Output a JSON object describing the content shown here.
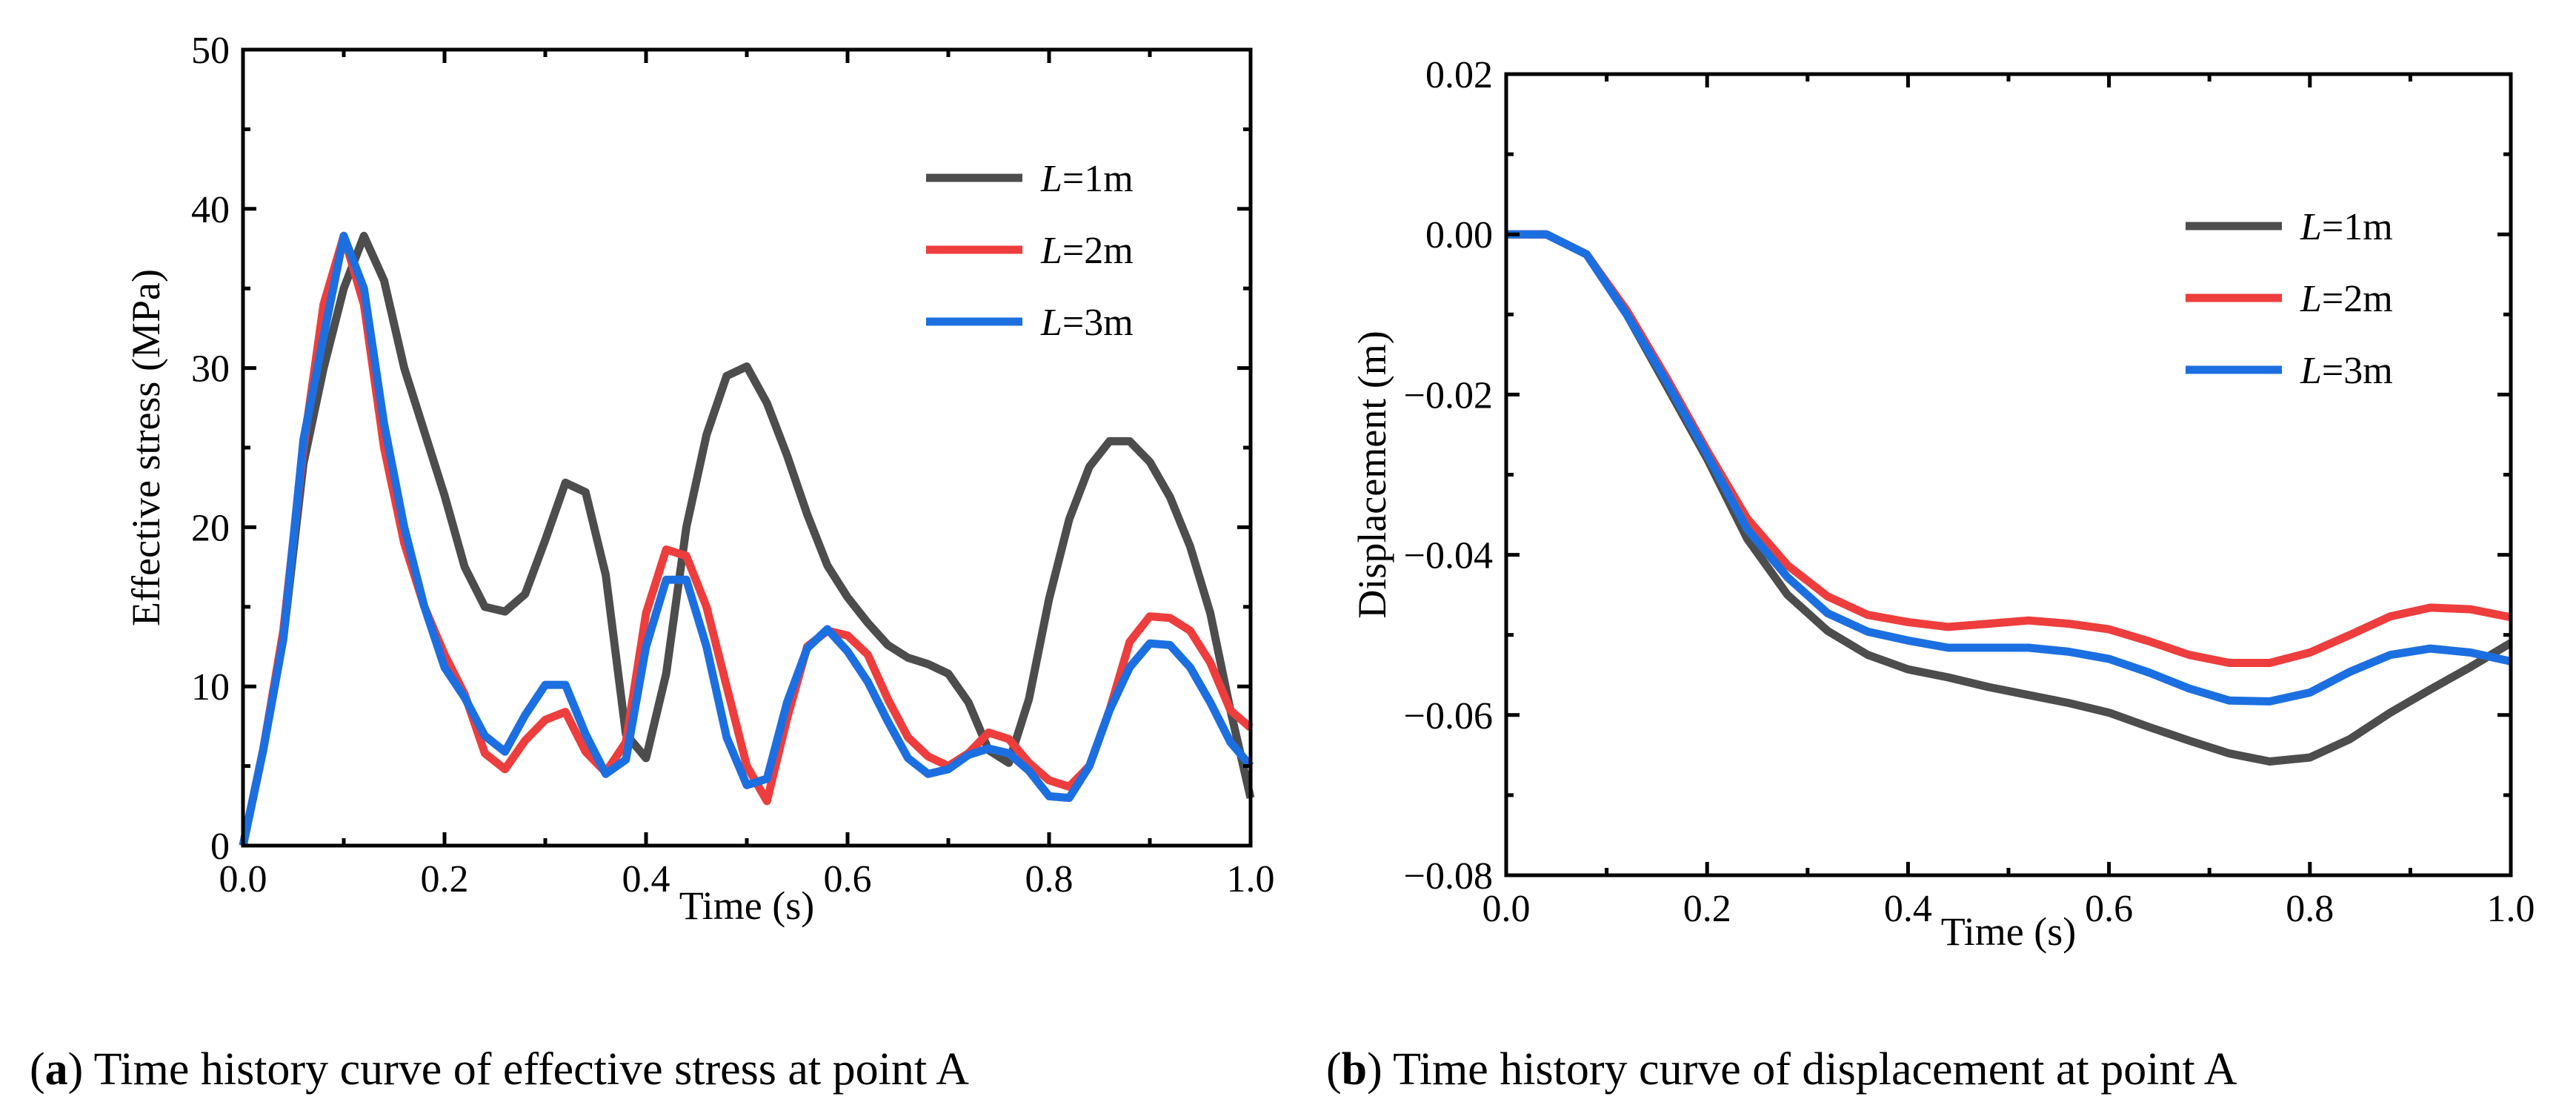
{
  "chart_data": [
    {
      "type": "line",
      "caption_label": "a",
      "caption_text": "Time history curve of effective stress at point A",
      "xlabel": "Time (s)",
      "ylabel": "Effective stress (MPa)",
      "xlim": [
        0,
        1.0
      ],
      "ylim": [
        0,
        50
      ],
      "xticks": [
        "0.0",
        "0.2",
        "0.4",
        "0.6",
        "0.8",
        "1.0"
      ],
      "xtick_values": [
        0,
        0.2,
        0.4,
        0.6,
        0.8,
        1.0
      ],
      "yticks": [
        "0",
        "10",
        "20",
        "30",
        "40",
        "50"
      ],
      "ytick_values": [
        0,
        10,
        20,
        30,
        40,
        50
      ],
      "legend_position": "top-right",
      "x": [
        0,
        0.02,
        0.04,
        0.06,
        0.08,
        0.1,
        0.12,
        0.14,
        0.16,
        0.18,
        0.2,
        0.22,
        0.24,
        0.26,
        0.28,
        0.3,
        0.32,
        0.34,
        0.36,
        0.38,
        0.4,
        0.42,
        0.44,
        0.46,
        0.48,
        0.5,
        0.52,
        0.54,
        0.56,
        0.58,
        0.6,
        0.62,
        0.64,
        0.66,
        0.68,
        0.7,
        0.72,
        0.74,
        0.76,
        0.78,
        0.8,
        0.82,
        0.84,
        0.86,
        0.88,
        0.9,
        0.92,
        0.94,
        0.96,
        0.98,
        1.0
      ],
      "series": [
        {
          "name_italic": "L",
          "name_rest": "=1m",
          "color": "#4d4d4d",
          "values": [
            0,
            6,
            13,
            24,
            30,
            35,
            38.3,
            35.5,
            30,
            26,
            22,
            17.5,
            15,
            14.7,
            15.8,
            19.2,
            22.8,
            22.2,
            17,
            7,
            5.5,
            10.8,
            20,
            25.8,
            29.5,
            30.1,
            27.8,
            24.5,
            20.8,
            17.6,
            15.6,
            14,
            12.6,
            11.8,
            11.4,
            10.8,
            9,
            6,
            5.2,
            9.2,
            15.5,
            20.5,
            23.8,
            25.4,
            25.4,
            24.1,
            21.9,
            18.8,
            14.6,
            8.5,
            3
          ]
        },
        {
          "name_italic": "L",
          "name_rest": "=2m",
          "color": "#ee3d3d",
          "values": [
            0,
            6,
            13.5,
            25,
            34,
            38.3,
            34,
            25,
            19,
            15,
            12,
            9.5,
            5.8,
            4.8,
            6.6,
            7.9,
            8.4,
            5.9,
            4.6,
            6.5,
            14.6,
            18.6,
            18.2,
            15,
            10,
            5,
            2.8,
            8,
            12.5,
            13.5,
            13.2,
            12,
            9.2,
            6.8,
            5.6,
            5,
            5.8,
            7.1,
            6.7,
            5.2,
            4.1,
            3.7,
            5,
            8.5,
            12.8,
            14.4,
            14.3,
            13.5,
            11.5,
            8.5,
            7.4
          ]
        },
        {
          "name_italic": "L",
          "name_rest": "=3m",
          "color": "#1c6fe0",
          "values": [
            0,
            6,
            13,
            25.5,
            32,
            38.3,
            35,
            26.5,
            20,
            15,
            11.2,
            9.3,
            6.9,
            5.9,
            8.2,
            10.1,
            10.1,
            7,
            4.5,
            5.4,
            12.5,
            16.7,
            16.7,
            12.5,
            6.8,
            3.8,
            4.2,
            9,
            12.4,
            13.6,
            12.2,
            10.3,
            7.8,
            5.5,
            4.5,
            4.8,
            5.7,
            6.1,
            5.8,
            4.7,
            3.1,
            3,
            5,
            8.5,
            11.2,
            12.7,
            12.6,
            11.2,
            9,
            6.5,
            5
          ]
        }
      ]
    },
    {
      "type": "line",
      "caption_label": "b",
      "caption_text": "Time history curve of displacement at point A",
      "xlabel": "Time (s)",
      "ylabel": "Displacement (m)",
      "xlim": [
        0,
        1.0
      ],
      "ylim": [
        -0.08,
        0.02
      ],
      "xticks": [
        "0.0",
        "0.2",
        "0.4",
        "0.6",
        "0.8",
        "1.0"
      ],
      "xtick_values": [
        0,
        0.2,
        0.4,
        0.6,
        0.8,
        1.0
      ],
      "yticks": [
        "−0.08",
        "−0.06",
        "−0.04",
        "−0.02",
        "0.00",
        "0.02"
      ],
      "ytick_values": [
        -0.08,
        -0.06,
        -0.04,
        -0.02,
        0,
        0.02
      ],
      "legend_position": "top-right",
      "x": [
        0,
        0.04,
        0.08,
        0.12,
        0.16,
        0.2,
        0.24,
        0.28,
        0.32,
        0.36,
        0.4,
        0.44,
        0.48,
        0.52,
        0.56,
        0.6,
        0.64,
        0.68,
        0.72,
        0.76,
        0.8,
        0.84,
        0.88,
        0.92,
        0.96,
        1.0
      ],
      "series": [
        {
          "name_italic": "L",
          "name_rest": "=1m",
          "color": "#4d4d4d",
          "values": [
            0,
            0,
            -0.0025,
            -0.01,
            -0.019,
            -0.028,
            -0.038,
            -0.045,
            -0.0495,
            -0.0525,
            -0.0543,
            -0.0553,
            -0.0565,
            -0.0575,
            -0.0585,
            -0.0597,
            -0.0615,
            -0.0632,
            -0.0648,
            -0.0658,
            -0.0653,
            -0.063,
            -0.0597,
            -0.0568,
            -0.054,
            -0.051
          ]
        },
        {
          "name_italic": "L",
          "name_rest": "=2m",
          "color": "#ee3d3d",
          "values": [
            0,
            0,
            -0.0025,
            -0.0095,
            -0.018,
            -0.027,
            -0.0355,
            -0.0413,
            -0.0452,
            -0.0475,
            -0.0484,
            -0.049,
            -0.0486,
            -0.0482,
            -0.0486,
            -0.0493,
            -0.0508,
            -0.0525,
            -0.0535,
            -0.0535,
            -0.0522,
            -0.05,
            -0.0477,
            -0.0466,
            -0.0468,
            -0.0478
          ]
        },
        {
          "name_italic": "L",
          "name_rest": "=3m",
          "color": "#1c6fe0",
          "values": [
            0,
            0,
            -0.0025,
            -0.01,
            -0.0185,
            -0.0275,
            -0.0368,
            -0.0428,
            -0.0473,
            -0.0496,
            -0.0507,
            -0.0516,
            -0.0516,
            -0.0516,
            -0.0521,
            -0.053,
            -0.0547,
            -0.0567,
            -0.0582,
            -0.0583,
            -0.0572,
            -0.0546,
            -0.0525,
            -0.0517,
            -0.0522,
            -0.0533
          ]
        }
      ]
    }
  ]
}
